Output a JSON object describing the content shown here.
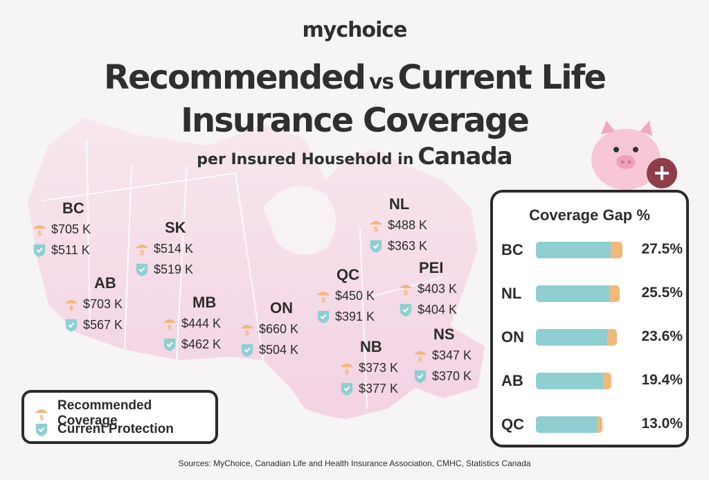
{
  "brand": "mychoice",
  "title_line1_a": "Recommended",
  "title_line1_vs": "vs",
  "title_line1_b": "Current Life",
  "title_line2": "Insurance Coverage",
  "subtitle_a": "per Insured Household in",
  "subtitle_b": "Canada",
  "provinces": [
    {
      "code": "BC",
      "recommended": "$705 K",
      "current": "$511 K"
    },
    {
      "code": "SK",
      "recommended": "$514 K",
      "current": "$519 K"
    },
    {
      "code": "AB",
      "recommended": "$703 K",
      "current": "$567 K"
    },
    {
      "code": "MB",
      "recommended": "$444 K",
      "current": "$462 K"
    },
    {
      "code": "ON",
      "recommended": "$660 K",
      "current": "$504 K"
    },
    {
      "code": "QC",
      "recommended": "$450 K",
      "current": "$391 K"
    },
    {
      "code": "NL",
      "recommended": "$488 K",
      "current": "$363 K"
    },
    {
      "code": "PEI",
      "recommended": "$403 K",
      "current": "$404 K"
    },
    {
      "code": "NB",
      "recommended": "$373 K",
      "current": "$377 K"
    },
    {
      "code": "NS",
      "recommended": "$347 K",
      "current": "$370 K"
    }
  ],
  "legend": {
    "recommended_label": "Recommended Coverage",
    "current_label": "Current Protection"
  },
  "icons": {
    "recommended": "umbrella-dollar-icon",
    "current": "shield-check-icon"
  },
  "colors": {
    "recommended": "#f0b97a",
    "current": "#8fcfd1",
    "map": "#f5cfe0",
    "text": "#2c2c2c"
  },
  "chart_data": {
    "type": "bar",
    "title": "Coverage Gap %",
    "categories": [
      "BC",
      "NL",
      "ON",
      "AB",
      "QC"
    ],
    "values": [
      27.5,
      25.5,
      23.6,
      19.4,
      13.0
    ],
    "value_labels": [
      "27.5%",
      "25.5%",
      "23.6%",
      "19.4%",
      "13.0%"
    ],
    "series": [
      {
        "values": [
          27.5,
          25.5,
          23.6,
          19.4,
          13.0
        ]
      }
    ],
    "orientation": "horizontal"
  },
  "source": "Sources: MyChoice, Canadian Life and Health Insurance Association, CMHC, Statistics Canada"
}
